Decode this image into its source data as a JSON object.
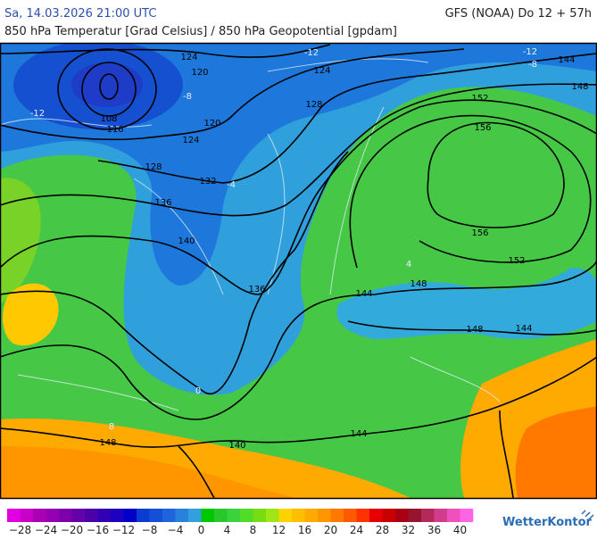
{
  "header": {
    "datetime": "Sa, 14.03.2026 21:00 UTC",
    "model": "GFS (NOAA) Do 12 + 57h",
    "subtitle": "850 hPa Temperatur [Grad Celsius] / 850 hPa Geopotential [gpdam]"
  },
  "map": {
    "contour_labels": [
      "124",
      "120",
      "108",
      "116",
      "124",
      "120",
      "128",
      "132",
      "136",
      "140",
      "136",
      "144",
      "148",
      "152",
      "156",
      "156",
      "152",
      "148",
      "144",
      "148",
      "140",
      "144",
      "124",
      "128",
      "144",
      "148"
    ],
    "isotherm_labels": [
      "-12",
      "-12",
      "-12",
      "-8",
      "-8",
      "-4",
      "0",
      "4",
      "8"
    ]
  },
  "legend": {
    "colors": [
      "#e100e1",
      "#c800c8",
      "#aa00b4",
      "#9600b4",
      "#7d00aa",
      "#6400aa",
      "#4b00aa",
      "#3200b4",
      "#1e00be",
      "#0000c8",
      "#0a3cd2",
      "#1450d7",
      "#1e64dc",
      "#2882dc",
      "#32a0dc",
      "#00c800",
      "#28c828",
      "#3cd23c",
      "#50dc28",
      "#78dc14",
      "#a0e614",
      "#ffd200",
      "#ffbe00",
      "#ffaa00",
      "#ff9600",
      "#ff7800",
      "#ff5a00",
      "#ff3200",
      "#e60000",
      "#c80000",
      "#aa0014",
      "#96142d",
      "#b4285a",
      "#d23c8c",
      "#f050be",
      "#ff64e6"
    ],
    "ticks": [
      "−28",
      "−24",
      "−20",
      "−16",
      "−12",
      "−8",
      "−4",
      "0",
      "4",
      "8",
      "12",
      "16",
      "20",
      "24",
      "28",
      "32",
      "36",
      "40"
    ]
  },
  "brand": "WetterKontor"
}
